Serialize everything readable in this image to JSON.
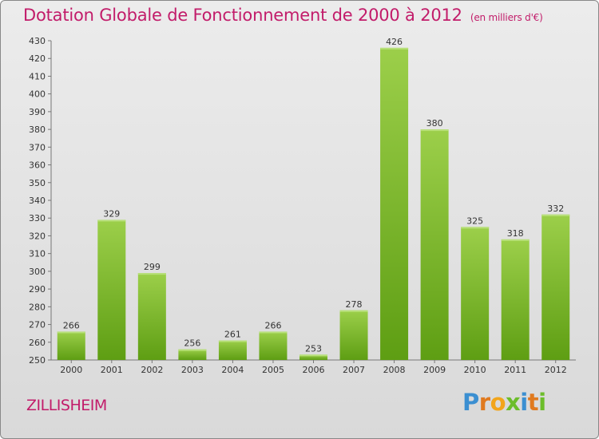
{
  "header": {
    "title": "Dotation Globale de Fonctionnement de 2000 à 2012",
    "unit": "(en milliers d'€)"
  },
  "footer": {
    "town": "ZILLISHEIM",
    "brand": "Proxiti"
  },
  "chart_data": {
    "type": "bar",
    "title": "Dotation Globale de Fonctionnement de 2000 à 2012",
    "subtitle": "(en milliers d'€)",
    "xlabel": "",
    "ylabel": "",
    "categories": [
      "2000",
      "2001",
      "2002",
      "2003",
      "2004",
      "2005",
      "2006",
      "2007",
      "2008",
      "2009",
      "2010",
      "2011",
      "2012"
    ],
    "values": [
      266,
      329,
      299,
      256,
      261,
      266,
      253,
      278,
      426,
      380,
      325,
      318,
      332
    ],
    "ylim": [
      250,
      430
    ],
    "ytick_step": 10,
    "grid": false,
    "legend": "none",
    "bar_color_top": "#9ccf4a",
    "bar_color_bottom": "#5e9e13",
    "label_color": "#333333"
  }
}
